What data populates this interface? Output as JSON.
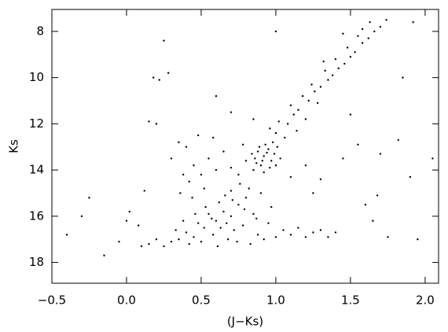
{
  "chart_data": {
    "type": "scatter",
    "xlabel": "(J−Ks)",
    "ylabel": "Ks",
    "color": "#000000",
    "xlim": [
      -0.5,
      2.09
    ],
    "ylim": [
      18.9,
      7.05
    ],
    "xticks": [
      {
        "value": -0.5,
        "label": "−0.5"
      },
      {
        "value": 0,
        "label": "0.0"
      },
      0.5,
      {
        "value": 1,
        "label": "1.0"
      },
      1.5,
      {
        "value": 2,
        "label": "2.0"
      }
    ],
    "yticks": [
      8,
      10,
      12,
      14,
      16,
      18
    ],
    "x": [
      0.88,
      0.92,
      0.95,
      0.97,
      0.9,
      0.86,
      0.99,
      1.01,
      0.93,
      0.89,
      0.96,
      0.84,
      1.03,
      0.91,
      0.94,
      0.87,
      0.98,
      1.0,
      0.85,
      0.92,
      1.0,
      1.06,
      0.96,
      1.08,
      1.02,
      1.12,
      1.15,
      1.1,
      1.22,
      1.18,
      1.26,
      1.3,
      1.24,
      1.35,
      1.38,
      1.33,
      1.42,
      1.46,
      1.4,
      1.5,
      1.53,
      1.48,
      1.58,
      1.62,
      1.55,
      1.66,
      1.7,
      1.63,
      1.74,
      1.45,
      1.32,
      1.58,
      1.2,
      1.14,
      1.28,
      0.45,
      0.52,
      0.6,
      0.65,
      0.7,
      0.75,
      0.8,
      0.72,
      0.58,
      0.68,
      0.78,
      0.85,
      0.62,
      0.55,
      0.48,
      0.4,
      0.35,
      0.88,
      0.92,
      0.95,
      0.82,
      0.76,
      0.7,
      0.66,
      0.9,
      0.63,
      0.74,
      0.5,
      0.42,
      0.3,
      0.25,
      0.57,
      0.79,
      0.87,
      0.97,
      1.0,
      1.05,
      1.1,
      1.15,
      1.2,
      1.25,
      1.3,
      1.35,
      1.4,
      0.67,
      0.71,
      0.53,
      0.46,
      0.38,
      0.33,
      0.2,
      0.15,
      0.1,
      0.83,
      0.61,
      0.4,
      0.45,
      0.5,
      0.42,
      0.35,
      0.55,
      0.6,
      0.38,
      0.3,
      0.48,
      0.52,
      0.44,
      0.36,
      0.58,
      0.65,
      0.7,
      0.75,
      0.8,
      0.78,
      0.18,
      0.22,
      0.28,
      0.25,
      -0.15,
      -0.25,
      -0.3,
      -0.4,
      0.02,
      0.08,
      0.0,
      -0.05,
      0.15,
      0.2,
      0.12,
      1.3,
      1.45,
      1.6,
      1.65,
      1.55,
      1.9,
      1.95,
      1.75,
      1.68,
      1.82,
      1.7,
      2.05,
      1.5,
      0.7,
      0.6,
      0.85,
      1.1,
      1.2,
      1.25,
      1.0,
      1.85,
      1.92
    ],
    "values": [
      13.2,
      13.4,
      13.1,
      13.6,
      13.8,
      13.5,
      13.3,
      13.0,
      12.9,
      13.0,
      13.9,
      13.3,
      13.5,
      13.6,
      13.25,
      13.7,
      12.8,
      13.8,
      14.0,
      14.1,
      12.4,
      12.6,
      12.2,
      12.0,
      11.9,
      11.6,
      11.4,
      11.2,
      11.0,
      10.8,
      10.6,
      10.4,
      10.3,
      10.1,
      9.9,
      9.7,
      9.6,
      9.4,
      9.2,
      9.1,
      8.9,
      8.7,
      8.5,
      8.3,
      8.2,
      8.0,
      7.8,
      7.6,
      7.5,
      8.1,
      9.3,
      7.9,
      11.8,
      12.3,
      11.1,
      16.9,
      16.5,
      16.2,
      15.8,
      16.0,
      15.5,
      15.2,
      16.6,
      16.8,
      17.0,
      16.4,
      15.9,
      15.4,
      15.9,
      16.3,
      16.7,
      17.0,
      16.8,
      17.0,
      16.3,
      14.8,
      14.6,
      14.9,
      15.1,
      15.0,
      16.5,
      17.1,
      17.1,
      17.2,
      17.1,
      17.3,
      16.1,
      15.7,
      16.1,
      15.6,
      16.9,
      16.6,
      16.8,
      16.5,
      16.9,
      16.7,
      16.6,
      16.9,
      16.7,
      16.3,
      15.3,
      15.6,
      15.9,
      16.2,
      16.6,
      17.0,
      17.2,
      17.3,
      17.2,
      17.3,
      13.0,
      13.8,
      14.2,
      14.5,
      12.8,
      13.5,
      14.0,
      14.2,
      13.5,
      12.5,
      14.8,
      15.2,
      15.0,
      12.6,
      13.2,
      13.9,
      14.2,
      13.6,
      12.9,
      10.0,
      10.1,
      9.8,
      8.4,
      17.7,
      15.2,
      16.0,
      16.8,
      15.8,
      16.4,
      16.2,
      17.1,
      11.9,
      12.0,
      14.9,
      14.4,
      13.5,
      15.5,
      16.2,
      12.9,
      14.3,
      17.0,
      16.9,
      15.1,
      12.7,
      13.3,
      13.5,
      11.6,
      11.5,
      10.8,
      11.8,
      14.3,
      13.8,
      15.0,
      8.0,
      10.0,
      7.6
    ]
  }
}
